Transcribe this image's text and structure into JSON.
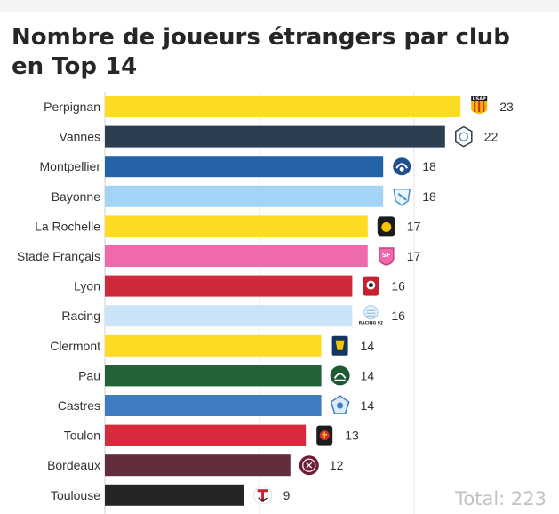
{
  "title": "Nombre de joueurs étrangers par club en Top 14",
  "total_text": "Total: 223",
  "chart_data": {
    "type": "bar",
    "orientation": "horizontal",
    "title": "Nombre de joueurs étrangers par club en Top 14",
    "xlabel": "",
    "ylabel": "",
    "xlim": [
      0,
      23
    ],
    "grid": true,
    "categories": [
      "Perpignan",
      "Vannes",
      "Montpellier",
      "Bayonne",
      "La Rochelle",
      "Stade Français",
      "Lyon",
      "Racing",
      "Clermont",
      "Pau",
      "Castres",
      "Toulon",
      "Bordeaux",
      "Toulouse"
    ],
    "values": [
      23,
      22,
      18,
      18,
      17,
      17,
      16,
      16,
      14,
      14,
      14,
      13,
      12,
      9
    ],
    "colors": [
      "#fdda24",
      "#2c3e50",
      "#2563a8",
      "#a3d4f5",
      "#fdda24",
      "#ee6aab",
      "#cd2a3a",
      "#c9e4f6",
      "#fdda24",
      "#236239",
      "#3f7cc2",
      "#d62b3c",
      "#622e3b",
      "#252525"
    ],
    "logo_icons": [
      "usap-logo-icon",
      "rc-vannes-logo-icon",
      "montpellier-logo-icon",
      "bayonne-logo-icon",
      "la-rochelle-logo-icon",
      "stade-francais-logo-icon",
      "lou-logo-icon",
      "racing-92-logo-icon",
      "asm-clermont-logo-icon",
      "section-paloise-logo-icon",
      "castres-olympique-logo-icon",
      "rc-toulon-logo-icon",
      "ubb-logo-icon",
      "stade-toulousain-logo-icon"
    ],
    "logo_texts": {
      "usap-logo-icon": "USAP",
      "stade-francais-logo-icon": "SF",
      "racing-92-logo-icon": "RACING 92"
    }
  }
}
